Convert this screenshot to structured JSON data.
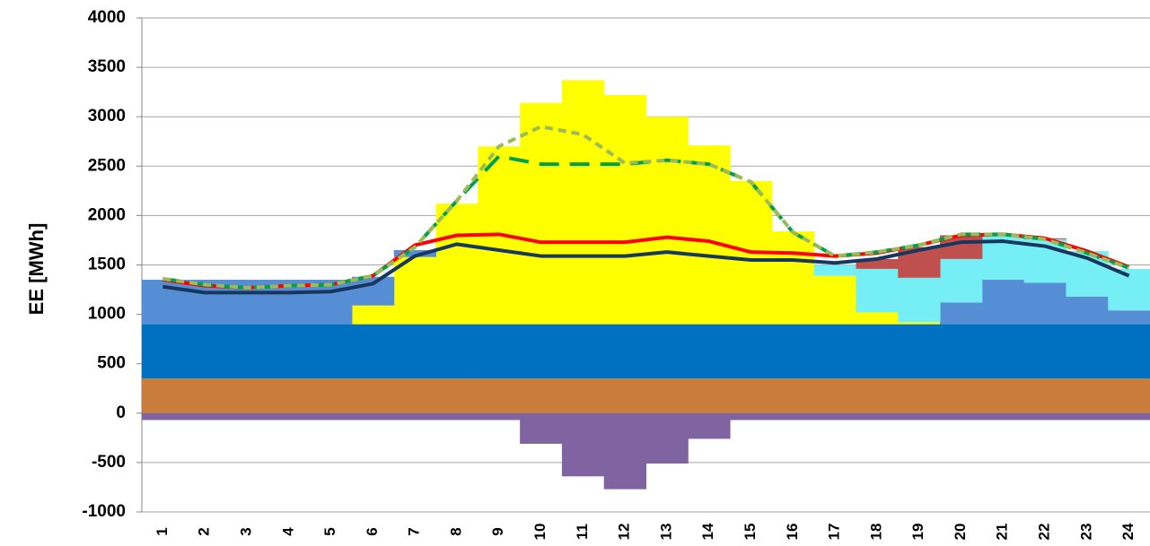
{
  "chart_data": {
    "type": "combo",
    "y_label": "EE [MWh]",
    "categories": [
      "1",
      "2",
      "3",
      "4",
      "5",
      "6",
      "7",
      "8",
      "9",
      "10",
      "11",
      "12",
      "13",
      "14",
      "15",
      "16",
      "17",
      "18",
      "19",
      "20",
      "21",
      "22",
      "23",
      "24"
    ],
    "ylim": [
      -1000,
      4000
    ],
    "yticks": [
      -1000,
      -500,
      0,
      500,
      1000,
      1500,
      2000,
      2500,
      3000,
      3500,
      4000
    ],
    "grid": true,
    "series": [
      {
        "kind": "bar",
        "color": "#c87d3c",
        "values": [
          350,
          350,
          350,
          350,
          350,
          350,
          350,
          350,
          350,
          350,
          350,
          350,
          350,
          350,
          350,
          350,
          350,
          350,
          350,
          350,
          350,
          350,
          350,
          350
        ]
      },
      {
        "kind": "bar",
        "color": "#0070c0",
        "values": [
          550,
          550,
          550,
          550,
          550,
          550,
          550,
          550,
          550,
          550,
          550,
          550,
          550,
          550,
          550,
          550,
          550,
          550,
          550,
          550,
          550,
          550,
          550,
          550
        ]
      },
      {
        "kind": "bar",
        "color": "#ffff00",
        "values": [
          0,
          0,
          0,
          0,
          0,
          190,
          680,
          1220,
          1800,
          2240,
          2470,
          2320,
          2100,
          1810,
          1450,
          940,
          490,
          120,
          20,
          0,
          0,
          0,
          0,
          0
        ]
      },
      {
        "kind": "bar",
        "color": "#558ed5",
        "values": [
          450,
          450,
          450,
          450,
          450,
          290,
          70,
          0,
          0,
          0,
          0,
          0,
          0,
          0,
          0,
          0,
          0,
          0,
          0,
          220,
          450,
          420,
          280,
          140
        ]
      },
      {
        "kind": "bar",
        "color": "#75eef5",
        "values": [
          0,
          0,
          0,
          0,
          0,
          0,
          0,
          0,
          0,
          0,
          0,
          0,
          0,
          0,
          0,
          0,
          110,
          440,
          450,
          440,
          440,
          440,
          460,
          420
        ]
      },
      {
        "kind": "bar",
        "color": "#c0504d",
        "values": [
          0,
          0,
          0,
          0,
          0,
          0,
          0,
          0,
          0,
          0,
          0,
          0,
          0,
          0,
          0,
          0,
          0,
          100,
          310,
          240,
          0,
          10,
          0,
          0
        ]
      },
      {
        "kind": "bar",
        "color": "#8064a2",
        "values": [
          -70,
          -70,
          -70,
          -70,
          -70,
          -70,
          -70,
          -70,
          -70,
          -310,
          -640,
          -770,
          -510,
          -260,
          -70,
          -70,
          -70,
          -70,
          -70,
          -70,
          -70,
          -70,
          -70,
          -70
        ]
      },
      {
        "kind": "line",
        "color": "#ff0000",
        "dash": "none",
        "values": [
          1350,
          1290,
          1270,
          1290,
          1300,
          1390,
          1700,
          1800,
          1810,
          1730,
          1730,
          1730,
          1780,
          1740,
          1630,
          1620,
          1590,
          1620,
          1700,
          1800,
          1810,
          1770,
          1640,
          1480
        ]
      },
      {
        "kind": "line",
        "color": "#00a050",
        "dash": "22 12",
        "values": [
          1360,
          1300,
          1270,
          1290,
          1300,
          1390,
          1680,
          2150,
          2600,
          2520,
          2520,
          2520,
          2560,
          2520,
          2340,
          1830,
          1590,
          1630,
          1700,
          1810,
          1810,
          1760,
          1620,
          1470
        ]
      },
      {
        "kind": "line",
        "color": "#9bbb59",
        "dash": "9 6",
        "values": [
          1360,
          1300,
          1270,
          1290,
          1300,
          1390,
          1680,
          2150,
          2700,
          2900,
          2820,
          2530,
          2560,
          2520,
          2340,
          1830,
          1590,
          1630,
          1700,
          1810,
          1810,
          1760,
          1620,
          1470
        ]
      },
      {
        "kind": "line",
        "color": "#17375e",
        "dash": "none",
        "values": [
          1280,
          1220,
          1220,
          1220,
          1230,
          1310,
          1590,
          1710,
          1650,
          1590,
          1590,
          1590,
          1630,
          1590,
          1550,
          1550,
          1520,
          1560,
          1650,
          1730,
          1740,
          1690,
          1570,
          1390
        ]
      }
    ]
  }
}
